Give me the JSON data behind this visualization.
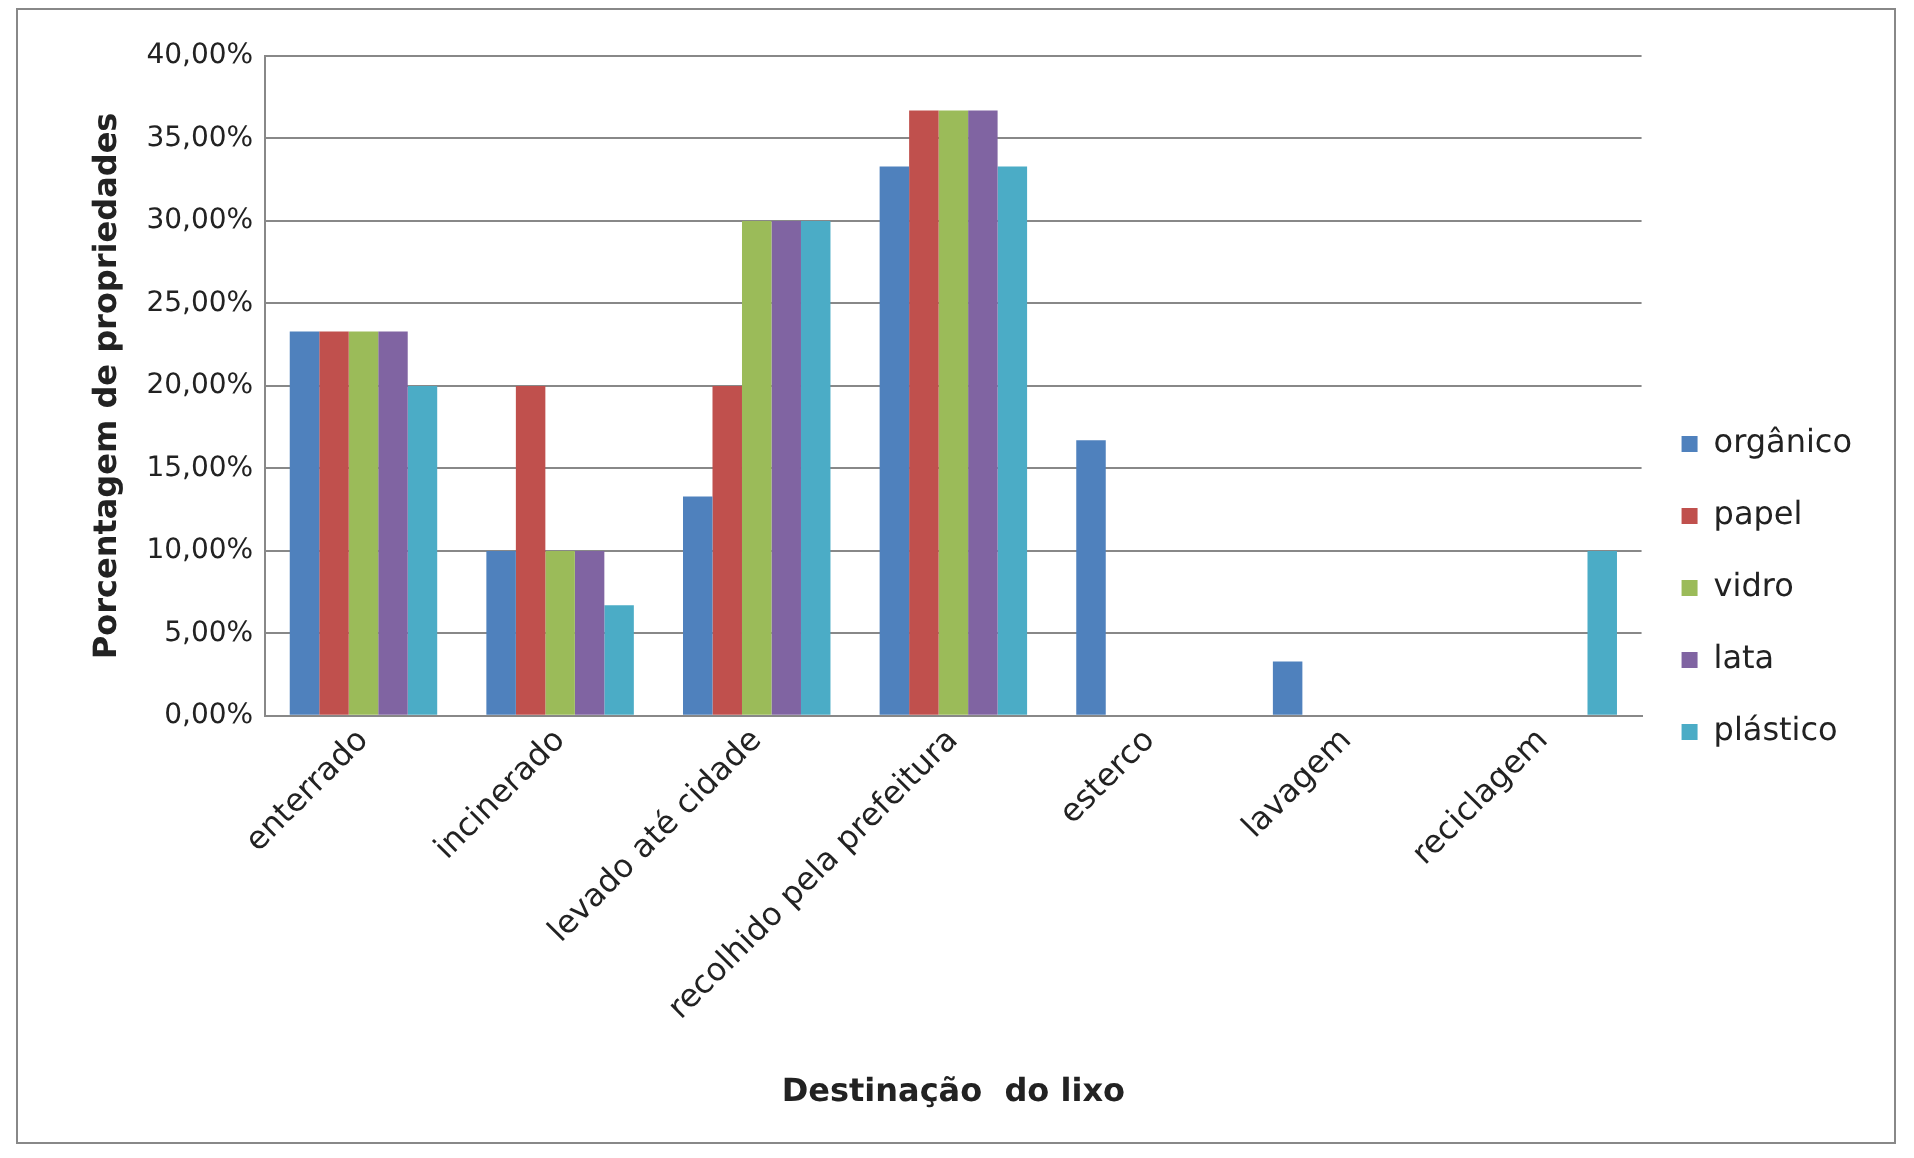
{
  "chart_data": {
    "type": "bar",
    "xlabel": "Destinação  do lixo",
    "ylabel": "Porcentagem de propriedades",
    "categories": [
      "enterrado",
      "incinerado",
      "levado até cidade",
      "recolhido pela prefeitura",
      "esterco",
      "lavagem",
      "reciclagem"
    ],
    "series": [
      {
        "name": "orgânico",
        "color": "#4f81bd",
        "values": [
          23.3,
          10,
          13.3,
          33.3,
          16.7,
          3.3,
          0
        ]
      },
      {
        "name": "papel",
        "color": "#c0504d",
        "values": [
          23.3,
          20,
          20,
          36.7,
          0,
          0,
          0
        ]
      },
      {
        "name": "vidro",
        "color": "#9bbb59",
        "values": [
          23.3,
          10,
          30,
          36.7,
          0,
          0,
          0
        ]
      },
      {
        "name": "lata",
        "color": "#8064a2",
        "values": [
          23.3,
          10,
          30,
          36.7,
          0,
          0,
          0
        ]
      },
      {
        "name": "plástico",
        "color": "#4bacc6",
        "values": [
          20,
          6.7,
          30,
          33.3,
          0,
          0,
          10
        ]
      }
    ],
    "ylim": [
      0,
      40
    ],
    "yticks": [
      {
        "value": 0,
        "label": "0,00%"
      },
      {
        "value": 5,
        "label": "5,00%"
      },
      {
        "value": 10,
        "label": "10,00%"
      },
      {
        "value": 15,
        "label": "15,00%"
      },
      {
        "value": 20,
        "label": "20,00%"
      },
      {
        "value": 25,
        "label": "25,00%"
      },
      {
        "value": 30,
        "label": "30,00%"
      },
      {
        "value": 35,
        "label": "35,00%"
      },
      {
        "value": 40,
        "label": "40,00%"
      }
    ],
    "grid": "y",
    "legend": "right"
  }
}
